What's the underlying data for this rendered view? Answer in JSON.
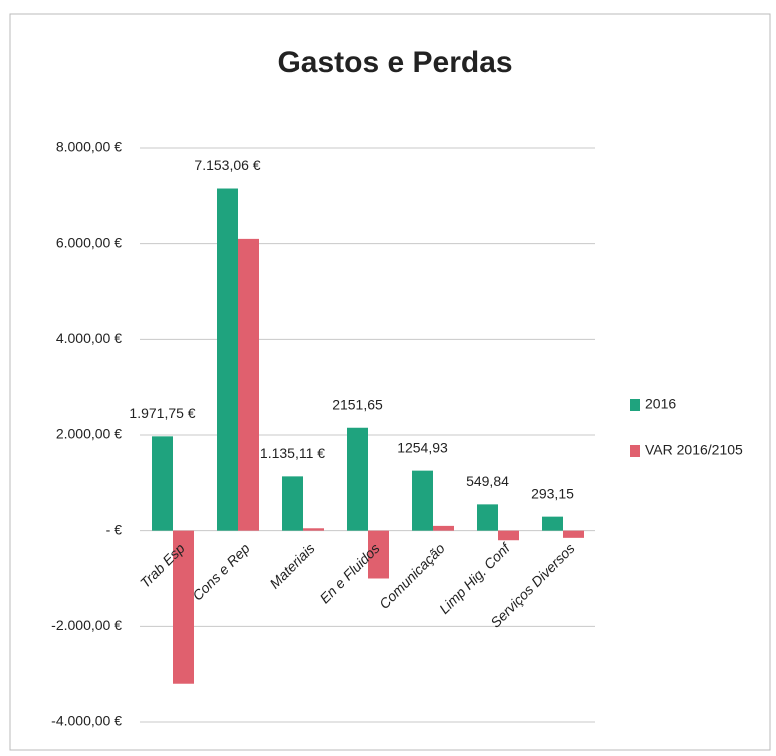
{
  "chart_data": {
    "type": "bar",
    "title": "Gastos e Perdas",
    "categories": [
      "Trab Esp",
      "Cons e Rep",
      "Materiais",
      "En e Fluidos",
      "Comunicação",
      "Limp Hig. Conf",
      "Serviços Diversos"
    ],
    "series": [
      {
        "name": "2016",
        "color": "#1fa37e",
        "values": [
          1971.75,
          7153.06,
          1135.11,
          2151.65,
          1254.93,
          549.84,
          293.15
        ],
        "value_labels": [
          "1.971,75 €",
          "7.153,06 €",
          "1.135,11 €",
          "2151,65",
          "1254,93",
          "549,84",
          "293,15"
        ]
      },
      {
        "name": "VAR 2016/2105",
        "color": "#e0606e",
        "values": [
          -3200,
          6100,
          50,
          -1000,
          100,
          -200,
          -150
        ]
      }
    ],
    "ylim": [
      -4000,
      8000
    ],
    "yticks": [
      {
        "value": -4000,
        "label": "-4.000,00 €"
      },
      {
        "value": -2000,
        "label": "-2.000,00 €"
      },
      {
        "value": 0,
        "label": "-  €"
      },
      {
        "value": 2000,
        "label": "2.000,00 €"
      },
      {
        "value": 4000,
        "label": "4.000,00 €"
      },
      {
        "value": 6000,
        "label": "6.000,00 €"
      },
      {
        "value": 8000,
        "label": "8.000,00 €"
      }
    ],
    "grid": true,
    "legend": "right"
  }
}
